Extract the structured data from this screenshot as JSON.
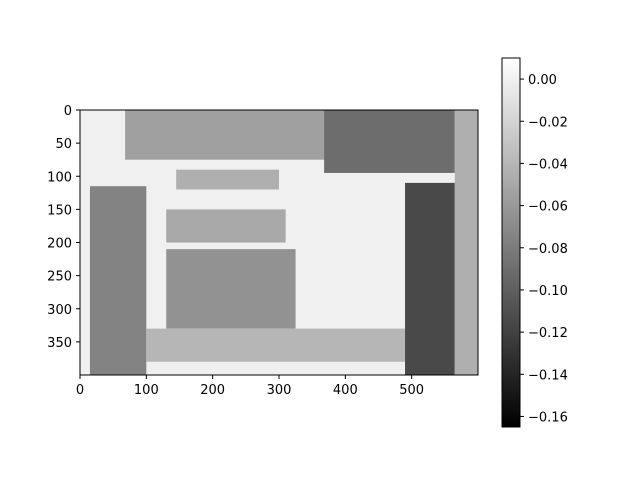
{
  "chart_data": {
    "type": "heatmap",
    "title": "",
    "xlabel": "",
    "ylabel": "",
    "image_width": 600,
    "image_height": 400,
    "xlim": [
      0,
      600
    ],
    "ylim": [
      400,
      0
    ],
    "x_ticks": [
      0,
      100,
      200,
      300,
      400,
      500
    ],
    "y_ticks": [
      0,
      50,
      100,
      150,
      200,
      250,
      300,
      350
    ],
    "colormap": "gray",
    "colorbar": {
      "range": [
        -0.165,
        0.01
      ],
      "ticks": [
        0.0,
        -0.02,
        -0.04,
        -0.06,
        -0.08,
        -0.1,
        -0.12,
        -0.14,
        -0.16
      ],
      "tick_labels": [
        "0.00",
        "−0.02",
        "−0.04",
        "−0.06",
        "−0.08",
        "−0.10",
        "−0.12",
        "−0.14",
        "−0.16"
      ]
    },
    "image_regions": [
      {
        "name": "light-background",
        "x": [
          0,
          600
        ],
        "y": [
          0,
          400
        ],
        "value": 0.0
      },
      {
        "name": "upper-left-cabinet-door",
        "x": [
          68,
          370
        ],
        "y": [
          0,
          75
        ],
        "value": -0.055
      },
      {
        "name": "upper-right-cabinet-door",
        "x": [
          368,
          565
        ],
        "y": [
          0,
          95
        ],
        "value": -0.09
      },
      {
        "name": "left-open-door",
        "x": [
          15,
          100
        ],
        "y": [
          115,
          400
        ],
        "value": -0.075
      },
      {
        "name": "lower-left-box",
        "x": [
          130,
          325
        ],
        "y": [
          210,
          330
        ],
        "value": -0.065
      },
      {
        "name": "book-stack",
        "x": [
          130,
          310
        ],
        "y": [
          150,
          200
        ],
        "value": -0.05
      },
      {
        "name": "upper-shelf-item",
        "x": [
          145,
          300
        ],
        "y": [
          90,
          120
        ],
        "value": -0.045
      },
      {
        "name": "bottom-shelf-edge",
        "x": [
          100,
          490
        ],
        "y": [
          330,
          380
        ],
        "value": -0.04
      },
      {
        "name": "right-cabinet-door",
        "x": [
          490,
          565
        ],
        "y": [
          110,
          400
        ],
        "value": -0.115
      },
      {
        "name": "right-frame-edge",
        "x": [
          565,
          600
        ],
        "y": [
          0,
          400
        ],
        "value": -0.045
      }
    ]
  }
}
